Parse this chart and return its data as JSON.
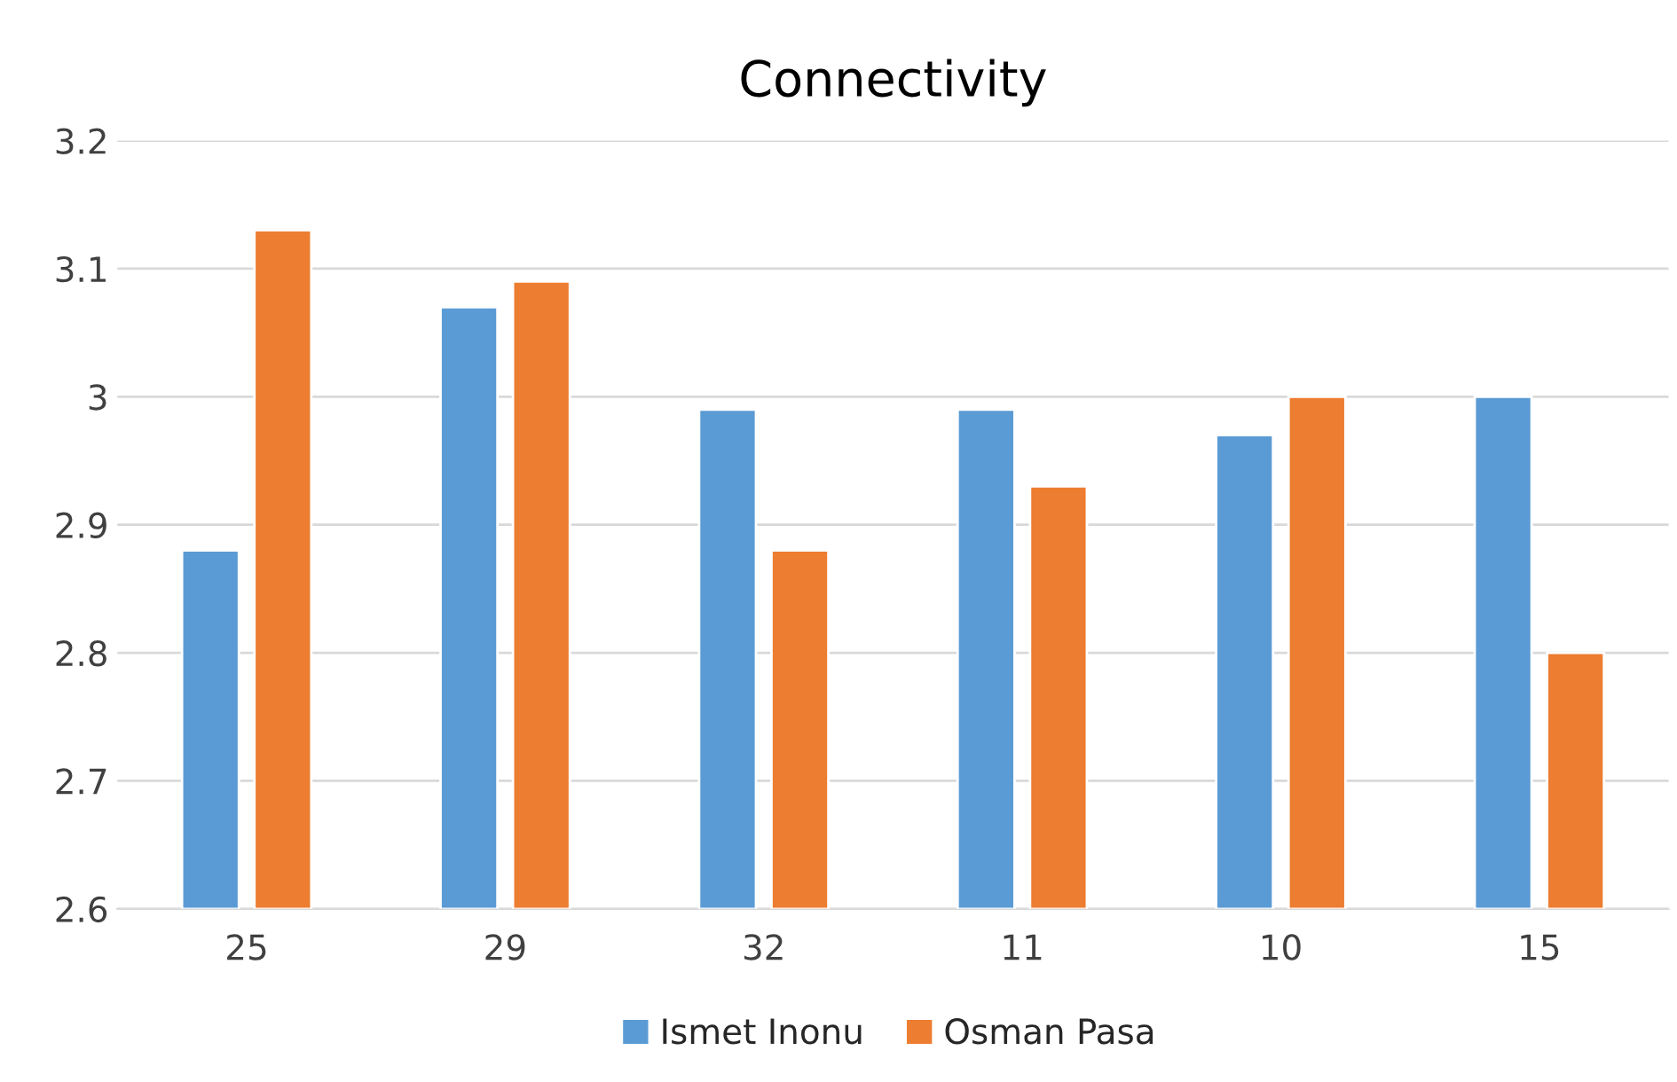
{
  "chart_data": {
    "type": "bar",
    "title": "Connectivity",
    "categories": [
      "25",
      "29",
      "32",
      "11",
      "10",
      "15"
    ],
    "series": [
      {
        "name": "Ismet Inonu",
        "color": "#5b9bd5",
        "values": [
          2.88,
          3.07,
          2.99,
          2.99,
          2.97,
          3.0
        ]
      },
      {
        "name": "Osman Pasa",
        "color": "#ed7d31",
        "values": [
          3.13,
          3.09,
          2.88,
          2.93,
          3.0,
          2.8
        ]
      }
    ],
    "ylim": [
      2.6,
      3.2
    ],
    "yticks": [
      2.6,
      2.7,
      2.8,
      2.9,
      3,
      3.1,
      3.2
    ],
    "grid": "y",
    "legend": "bottom"
  }
}
